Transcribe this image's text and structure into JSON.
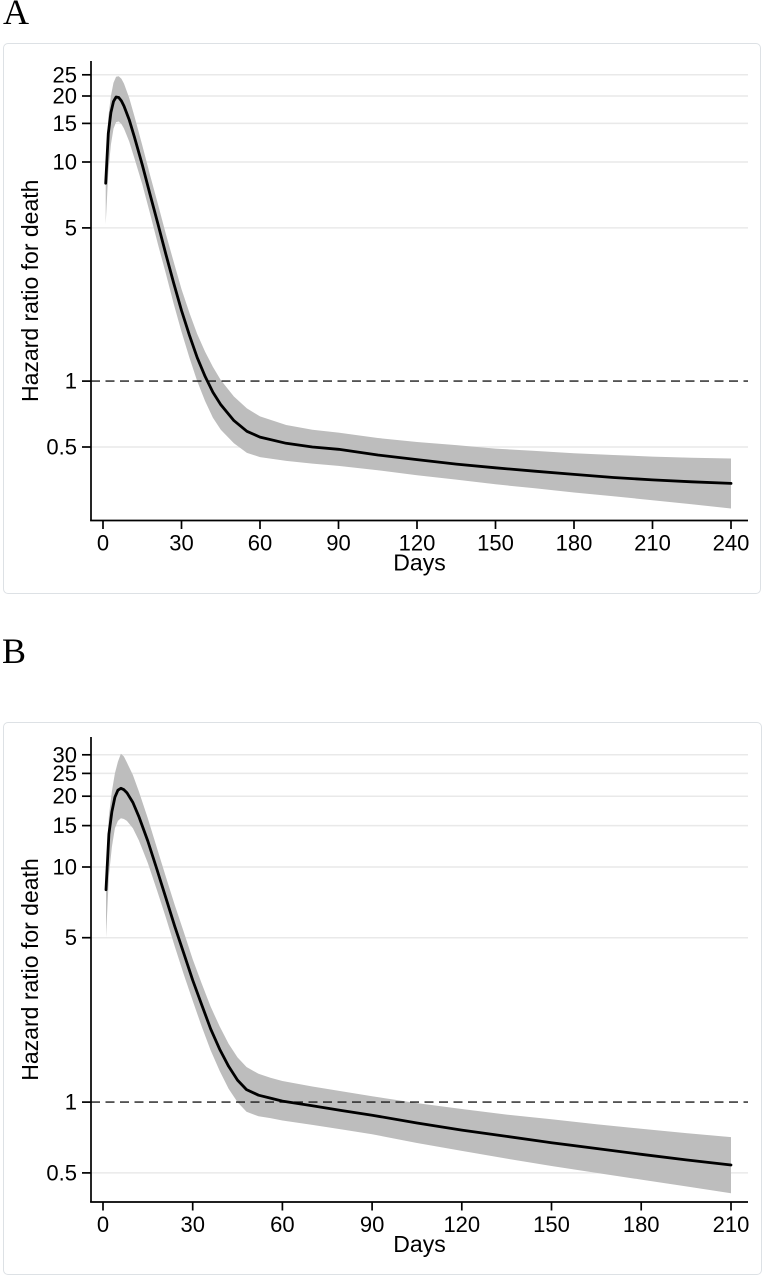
{
  "chart_data": [
    {
      "type": "line",
      "title": "A",
      "xlabel": "Days",
      "ylabel": "Hazard ratio for death",
      "yscale": "log",
      "legend": "none",
      "grid": "horizontal",
      "xticks": [
        0,
        30,
        60,
        90,
        120,
        150,
        180,
        210,
        240
      ],
      "yticks": [
        25,
        20,
        15,
        10,
        5,
        1,
        0.5
      ],
      "grid_yticks": [
        25,
        20,
        15,
        10,
        5,
        0.5
      ],
      "reference_line_y": 1,
      "xlim": [
        -4.6,
        246.5
      ],
      "ylim": [
        0.231,
        28.9
      ],
      "colors": {
        "line": "#000000",
        "band": "#bdbdbd",
        "grid": "#e9e9e9",
        "reference": "#1a1a1a"
      },
      "x": [
        1,
        2,
        3,
        4,
        5,
        6,
        7,
        8,
        10,
        12,
        15,
        18,
        21,
        24,
        27,
        30,
        33,
        36,
        39,
        42,
        45,
        50,
        55,
        60,
        70,
        80,
        90,
        105,
        120,
        135,
        150,
        165,
        180,
        195,
        210,
        225,
        240
      ],
      "series": [
        {
          "name": "Hazard ratio",
          "values": [
            8.0,
            13.5,
            16.8,
            18.9,
            19.8,
            19.7,
            19.0,
            18.0,
            15.6,
            13.0,
            9.7,
            7.1,
            5.2,
            3.8,
            2.8,
            2.1,
            1.62,
            1.28,
            1.05,
            0.89,
            0.78,
            0.66,
            0.59,
            0.555,
            0.52,
            0.5,
            0.488,
            0.46,
            0.438,
            0.418,
            0.402,
            0.388,
            0.375,
            0.363,
            0.354,
            0.347,
            0.341
          ]
        },
        {
          "name": "95% CI lower",
          "values": [
            5.2,
            9.0,
            12.0,
            14.2,
            15.2,
            15.3,
            14.9,
            14.2,
            12.4,
            10.4,
            7.9,
            5.8,
            4.2,
            3.1,
            2.25,
            1.68,
            1.28,
            1.0,
            0.81,
            0.68,
            0.6,
            0.52,
            0.47,
            0.45,
            0.432,
            0.42,
            0.41,
            0.392,
            0.372,
            0.355,
            0.338,
            0.324,
            0.31,
            0.298,
            0.286,
            0.274,
            0.262
          ]
        },
        {
          "name": "95% CI upper",
          "values": [
            9.3,
            16.0,
            20.0,
            23.0,
            24.5,
            24.6,
            24.0,
            22.8,
            19.6,
            16.2,
            11.9,
            8.7,
            6.4,
            4.7,
            3.5,
            2.63,
            2.05,
            1.64,
            1.36,
            1.16,
            1.01,
            0.85,
            0.75,
            0.69,
            0.63,
            0.6,
            0.582,
            0.55,
            0.527,
            0.51,
            0.492,
            0.48,
            0.468,
            0.46,
            0.452,
            0.447,
            0.443
          ]
        }
      ]
    },
    {
      "type": "line",
      "title": "B",
      "xlabel": "Days",
      "ylabel": "Hazard ratio for death",
      "yscale": "log",
      "legend": "none",
      "grid": "horizontal",
      "xticks": [
        0,
        30,
        60,
        90,
        120,
        150,
        180,
        210
      ],
      "yticks": [
        30,
        25,
        20,
        15,
        10,
        5,
        1,
        0.5
      ],
      "grid_yticks": [
        30,
        25,
        20,
        15,
        10,
        5,
        0.5
      ],
      "reference_line_y": 1,
      "xlim": [
        -4.0,
        215.7
      ],
      "ylim": [
        0.376,
        35.7
      ],
      "colors": {
        "line": "#000000",
        "band": "#bdbdbd",
        "grid": "#e9e9e9",
        "reference": "#1a1a1a"
      },
      "x": [
        1,
        2,
        3,
        4,
        5,
        6,
        7,
        8,
        10,
        12,
        15,
        18,
        21,
        24,
        27,
        30,
        33,
        36,
        39,
        42,
        45,
        48,
        52,
        56,
        60,
        70,
        80,
        90,
        105,
        120,
        135,
        150,
        165,
        180,
        195,
        210
      ],
      "series": [
        {
          "name": "Hazard ratio",
          "values": [
            8.0,
            13.8,
            17.2,
            19.8,
            21.2,
            21.6,
            21.3,
            20.7,
            18.8,
            16.4,
            12.9,
            9.8,
            7.4,
            5.6,
            4.3,
            3.3,
            2.6,
            2.05,
            1.68,
            1.42,
            1.24,
            1.13,
            1.07,
            1.04,
            1.01,
            0.965,
            0.92,
            0.88,
            0.815,
            0.76,
            0.715,
            0.672,
            0.635,
            0.6,
            0.568,
            0.54
          ]
        },
        {
          "name": "95% CI lower",
          "values": [
            5.0,
            9.2,
            12.2,
            14.6,
            15.7,
            16.1,
            16.0,
            15.7,
            14.6,
            13.0,
            10.4,
            8.0,
            6.1,
            4.6,
            3.5,
            2.7,
            2.1,
            1.66,
            1.36,
            1.14,
            1.0,
            0.91,
            0.87,
            0.855,
            0.835,
            0.8,
            0.765,
            0.73,
            0.67,
            0.62,
            0.575,
            0.535,
            0.5,
            0.468,
            0.438,
            0.41
          ]
        },
        {
          "name": "95% CI upper",
          "values": [
            9.5,
            16.5,
            21.0,
            25.0,
            28.0,
            30.3,
            29.5,
            27.8,
            24.6,
            21.0,
            16.1,
            12.1,
            9.1,
            6.9,
            5.3,
            4.05,
            3.2,
            2.55,
            2.1,
            1.77,
            1.55,
            1.41,
            1.32,
            1.27,
            1.23,
            1.165,
            1.11,
            1.06,
            0.99,
            0.935,
            0.885,
            0.845,
            0.805,
            0.77,
            0.738,
            0.71
          ]
        }
      ]
    }
  ]
}
